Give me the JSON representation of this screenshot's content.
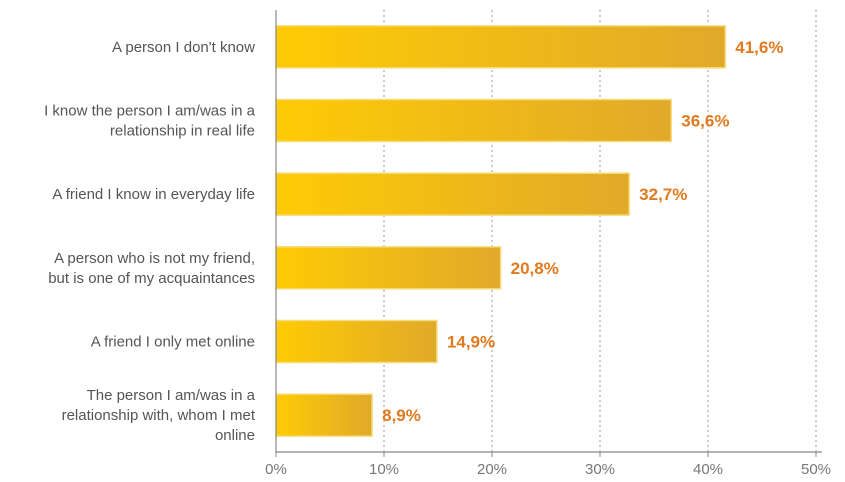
{
  "chart_data": {
    "type": "bar",
    "orientation": "horizontal",
    "categories": [
      [
        "A person I don't know"
      ],
      [
        "I know the person I am/was in a",
        "relationship in real life"
      ],
      [
        "A friend I know in everyday life"
      ],
      [
        "A person who is not my friend,",
        "but is one of my acquaintances"
      ],
      [
        "A friend I only met online"
      ],
      [
        "The person I am/was in a",
        "relationship with, whom I met",
        "online"
      ]
    ],
    "values": [
      41.6,
      36.6,
      32.7,
      20.8,
      14.9,
      8.9
    ],
    "value_labels": [
      "41,6%",
      "36,6%",
      "32,7%",
      "20,8%",
      "14,9%",
      "8,9%"
    ],
    "xlim": [
      0,
      50
    ],
    "ticks": [
      0,
      10,
      20,
      30,
      40,
      50
    ],
    "tick_labels": [
      "0%",
      "10%",
      "20%",
      "30%",
      "40%",
      "50%"
    ],
    "title": "",
    "xlabel": "",
    "ylabel": "",
    "grid": "vertical dotted",
    "legend": "none",
    "colors": {
      "bar_start": "#ffcb05",
      "bar_end": "#e0a92a",
      "bar_outline": "#f6dc7a",
      "value_label": "#e07a1f",
      "axis": "#888888",
      "grid": "#999999"
    }
  }
}
